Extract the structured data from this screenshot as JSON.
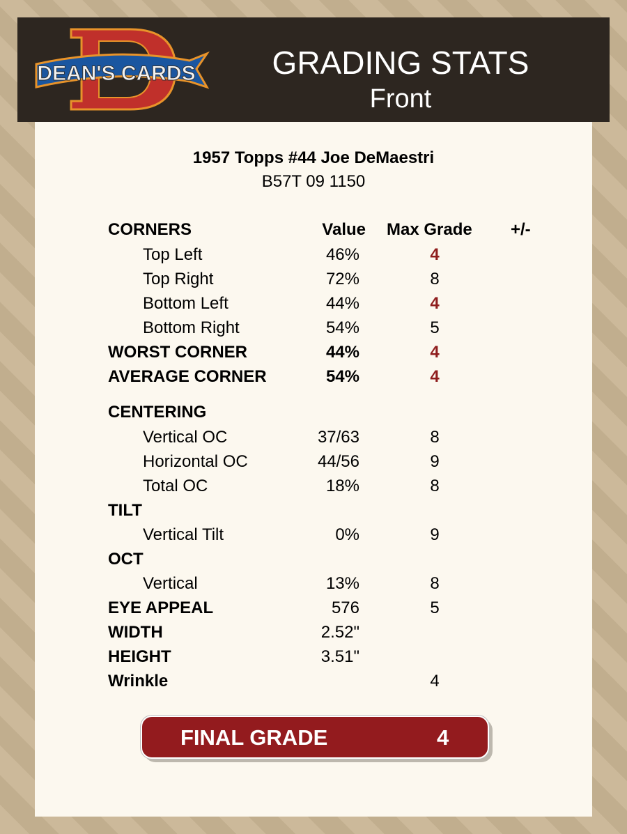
{
  "header": {
    "logo_text": "DEAN'S CARDS",
    "title": "GRADING STATS",
    "subtitle": "Front"
  },
  "card": {
    "name": "1957 Topps #44 Joe DeMaestri",
    "code": "B57T 09 1150"
  },
  "columns": {
    "label": "CORNERS",
    "value": "Value",
    "max": "Max Grade",
    "diff": "+/-"
  },
  "rows": [
    {
      "label": "Top Left",
      "value": "46%",
      "max": "4",
      "indent": true,
      "red": true
    },
    {
      "label": "Top Right",
      "value": "72%",
      "max": "8",
      "indent": true
    },
    {
      "label": "Bottom Left",
      "value": "44%",
      "max": "4",
      "indent": true,
      "red": true
    },
    {
      "label": "Bottom Right",
      "value": "54%",
      "max": "5",
      "indent": true
    },
    {
      "label": "WORST CORNER",
      "value": "44%",
      "max": "4",
      "bold": true,
      "red": true
    },
    {
      "label": "AVERAGE CORNER",
      "value": "54%",
      "max": "4",
      "bold": true,
      "red": true
    },
    {
      "label": "CENTERING",
      "value": "",
      "max": "",
      "bold": true
    },
    {
      "label": "Vertical OC",
      "value": "37/63",
      "max": "8",
      "indent": true
    },
    {
      "label": "Horizontal OC",
      "value": "44/56",
      "max": "9",
      "indent": true
    },
    {
      "label": "Total OC",
      "value": "18%",
      "max": "8",
      "indent": true
    },
    {
      "label": "TILT",
      "value": "",
      "max": "",
      "bold": true
    },
    {
      "label": "Vertical Tilt",
      "value": "0%",
      "max": "9",
      "indent": true
    },
    {
      "label": "OCT",
      "value": "",
      "max": "",
      "bold": true
    },
    {
      "label": "Vertical",
      "value": "13%",
      "max": "8",
      "indent": true
    },
    {
      "label": "EYE APPEAL",
      "value": "576",
      "max": "5",
      "bold": true,
      "boldvalue": false
    },
    {
      "label": "WIDTH",
      "value": "2.52\"",
      "max": "",
      "bold": true
    },
    {
      "label": "HEIGHT",
      "value": "3.51\"",
      "max": "",
      "bold": true
    },
    {
      "label": "Wrinkle",
      "value": "",
      "max": "4",
      "bold": true
    }
  ],
  "final": {
    "label": "FINAL GRADE",
    "grade": "4"
  },
  "colors": {
    "header_bg": "#2d2620",
    "accent_red": "#931b1e",
    "grade_red": "#8f1d1d",
    "panel_bg": "#fcf8ef"
  }
}
